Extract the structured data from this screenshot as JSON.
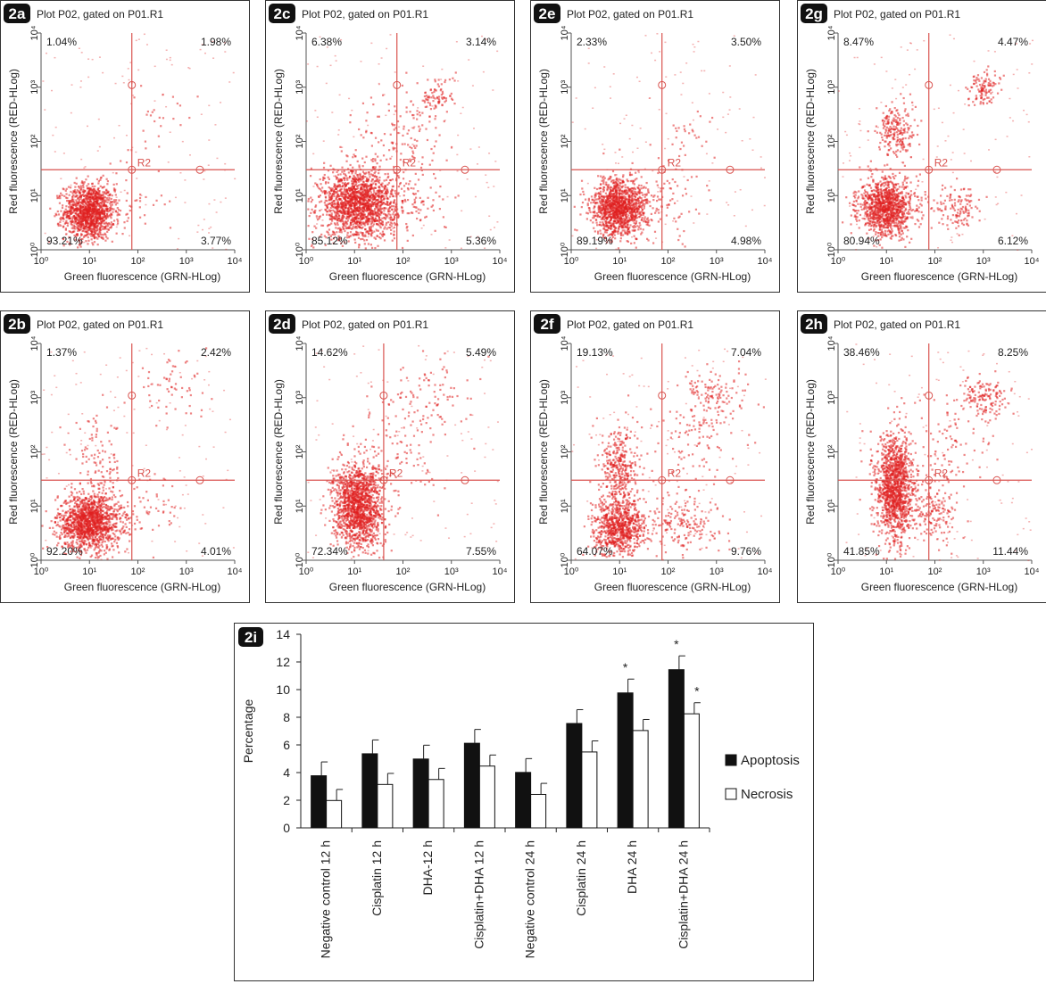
{
  "colors": {
    "dot": "#e02020",
    "gate": "#d9534f",
    "bar_apoptosis": "#111111",
    "bar_necrosis": "#ffffff"
  },
  "chart_data": [
    {
      "type": "scatter",
      "panel_label": "2a",
      "title": "Plot P02, gated on P01.R1",
      "xlabel": "Green fluorescence (GRN-HLog)",
      "ylabel": "Red fluorescence (RED-HLog)",
      "x_scale": "log",
      "y_scale": "log",
      "xlim": [
        1,
        10000
      ],
      "ylim": [
        1,
        10000
      ],
      "x_ticks": [
        "10⁰",
        "10¹",
        "10²",
        "10³",
        "10⁴"
      ],
      "y_ticks": [
        "10⁰",
        "10¹",
        "10²",
        "10³",
        "10⁴"
      ],
      "gate_label": "R2",
      "gate_x": 75,
      "gate_y": 30,
      "quadrants": {
        "upper_left": "1.04%",
        "upper_right": "1.98%",
        "lower_left": "93.21%",
        "lower_right": "3.77%"
      },
      "clusters": [
        {
          "x": 10,
          "y": 5,
          "sx": 0.2,
          "sy": 0.2,
          "n": 1300
        },
        {
          "x": 300,
          "y": 300,
          "sx": 0.3,
          "sy": 0.2,
          "n": 25
        },
        {
          "x": 60,
          "y": 8,
          "sx": 0.3,
          "sy": 0.3,
          "n": 40
        }
      ]
    },
    {
      "type": "scatter",
      "panel_label": "2b",
      "title": "Plot P02, gated on P01.R1",
      "xlabel": "Green fluorescence (GRN-HLog)",
      "ylabel": "Red fluorescence (RED-HLog)",
      "x_scale": "log",
      "y_scale": "log",
      "xlim": [
        1,
        10000
      ],
      "ylim": [
        1,
        10000
      ],
      "x_ticks": [
        "10⁰",
        "10¹",
        "10²",
        "10³",
        "10⁴"
      ],
      "y_ticks": [
        "10⁰",
        "10¹",
        "10²",
        "10³",
        "10⁴"
      ],
      "gate_label": "R2",
      "gate_x": 75,
      "gate_y": 30,
      "quadrants": {
        "upper_left": "1.37%",
        "upper_right": "2.42%",
        "lower_left": "92.20%",
        "lower_right": "4.01%"
      },
      "clusters": [
        {
          "x": 10,
          "y": 5,
          "sx": 0.25,
          "sy": 0.2,
          "n": 1400
        },
        {
          "x": 500,
          "y": 1500,
          "sx": 0.3,
          "sy": 0.2,
          "n": 60
        },
        {
          "x": 15,
          "y": 50,
          "sx": 0.2,
          "sy": 0.35,
          "n": 120
        },
        {
          "x": 150,
          "y": 8,
          "sx": 0.3,
          "sy": 0.25,
          "n": 60
        }
      ]
    },
    {
      "type": "scatter",
      "panel_label": "2c",
      "title": "Plot P02, gated on P01.R1",
      "xlabel": "Green fluorescence (GRN-HLog)",
      "ylabel": "Red fluorescence (RED-HLog)",
      "x_scale": "log",
      "y_scale": "log",
      "xlim": [
        1,
        10000
      ],
      "ylim": [
        1,
        10000
      ],
      "x_ticks": [
        "10⁰",
        "10¹",
        "10²",
        "10³",
        "10⁴"
      ],
      "y_ticks": [
        "10⁰",
        "10¹",
        "10²",
        "10³",
        "10⁴"
      ],
      "gate_label": "R2",
      "gate_x": 75,
      "gate_y": 30,
      "quadrants": {
        "upper_left": "6.38%",
        "upper_right": "3.14%",
        "lower_left": "85.12%",
        "lower_right": "5.36%"
      },
      "clusters": [
        {
          "x": 12,
          "y": 7,
          "sx": 0.3,
          "sy": 0.25,
          "n": 1700
        },
        {
          "x": 500,
          "y": 700,
          "sx": 0.15,
          "sy": 0.15,
          "n": 90
        },
        {
          "x": 100,
          "y": 100,
          "sx": 0.35,
          "sy": 0.35,
          "n": 120
        },
        {
          "x": 150,
          "y": 8,
          "sx": 0.3,
          "sy": 0.25,
          "n": 100
        }
      ]
    },
    {
      "type": "scatter",
      "panel_label": "2d",
      "title": "Plot P02, gated on P01.R1",
      "xlabel": "Green fluorescence (GRN-HLog)",
      "ylabel": "Red fluorescence (RED-HLog)",
      "x_scale": "log",
      "y_scale": "log",
      "xlim": [
        1,
        10000
      ],
      "ylim": [
        1,
        10000
      ],
      "x_ticks": [
        "10⁰",
        "10¹",
        "10²",
        "10³",
        "10⁴"
      ],
      "y_ticks": [
        "10⁰",
        "10¹",
        "10²",
        "10³",
        "10⁴"
      ],
      "gate_label": "R2",
      "gate_x": 40,
      "gate_y": 30,
      "quadrants": {
        "upper_left": "14.62%",
        "upper_right": "5.49%",
        "lower_left": "72.34%",
        "lower_right": "7.55%"
      },
      "clusters": [
        {
          "x": 12,
          "y": 10,
          "sx": 0.2,
          "sy": 0.3,
          "n": 1500
        },
        {
          "x": 300,
          "y": 1000,
          "sx": 0.35,
          "sy": 0.3,
          "n": 90
        },
        {
          "x": 100,
          "y": 100,
          "sx": 0.35,
          "sy": 0.4,
          "n": 90
        }
      ]
    },
    {
      "type": "scatter",
      "panel_label": "2e",
      "title": "Plot P02, gated on P01.R1",
      "xlabel": "Green fluorescence (GRN-HLog)",
      "ylabel": "Red fluorescence (RED-HLog)",
      "x_scale": "log",
      "y_scale": "log",
      "xlim": [
        1,
        10000
      ],
      "ylim": [
        1,
        10000
      ],
      "x_ticks": [
        "10⁰",
        "10¹",
        "10²",
        "10³",
        "10⁴"
      ],
      "y_ticks": [
        "10⁰",
        "10¹",
        "10²",
        "10³",
        "10⁴"
      ],
      "gate_label": "R2",
      "gate_x": 75,
      "gate_y": 30,
      "quadrants": {
        "upper_left": "2.33%",
        "upper_right": "3.50%",
        "lower_left": "89.19%",
        "lower_right": "4.98%"
      },
      "clusters": [
        {
          "x": 10,
          "y": 6,
          "sx": 0.22,
          "sy": 0.2,
          "n": 1300
        },
        {
          "x": 300,
          "y": 100,
          "sx": 0.25,
          "sy": 0.2,
          "n": 30
        },
        {
          "x": 100,
          "y": 8,
          "sx": 0.3,
          "sy": 0.3,
          "n": 70
        }
      ]
    },
    {
      "type": "scatter",
      "panel_label": "2f",
      "title": "Plot P02, gated on P01.R1",
      "xlabel": "Green fluorescence (GRN-HLog)",
      "ylabel": "Red fluorescence (RED-HLog)",
      "x_scale": "log",
      "y_scale": "log",
      "xlim": [
        1,
        10000
      ],
      "ylim": [
        1,
        10000
      ],
      "x_ticks": [
        "10⁰",
        "10¹",
        "10²",
        "10³",
        "10⁴"
      ],
      "y_ticks": [
        "10⁰",
        "10¹",
        "10²",
        "10³",
        "10⁴"
      ],
      "gate_label": "R2",
      "gate_x": 75,
      "gate_y": 30,
      "quadrants": {
        "upper_left": "19.13%",
        "upper_right": "7.04%",
        "lower_left": "64.07%",
        "lower_right": "9.76%"
      },
      "clusters": [
        {
          "x": 10,
          "y": 4,
          "sx": 0.2,
          "sy": 0.2,
          "n": 800
        },
        {
          "x": 10,
          "y": 50,
          "sx": 0.15,
          "sy": 0.3,
          "n": 350
        },
        {
          "x": 1000,
          "y": 1000,
          "sx": 0.25,
          "sy": 0.2,
          "n": 120
        },
        {
          "x": 200,
          "y": 5,
          "sx": 0.3,
          "sy": 0.2,
          "n": 180
        },
        {
          "x": 400,
          "y": 200,
          "sx": 0.35,
          "sy": 0.4,
          "n": 100
        }
      ]
    },
    {
      "type": "scatter",
      "panel_label": "2g",
      "title": "Plot P02, gated on P01.R1",
      "xlabel": "Green fluorescence (GRN-HLog)",
      "ylabel": "Red fluorescence (RED-HLog)",
      "x_scale": "log",
      "y_scale": "log",
      "xlim": [
        1,
        10000
      ],
      "ylim": [
        1,
        10000
      ],
      "x_ticks": [
        "10⁰",
        "10¹",
        "10²",
        "10³",
        "10⁴"
      ],
      "y_ticks": [
        "10⁰",
        "10¹",
        "10²",
        "10³",
        "10⁴"
      ],
      "gate_label": "R2",
      "gate_x": 75,
      "gate_y": 30,
      "quadrants": {
        "upper_left": "8.47%",
        "upper_right": "4.47%",
        "lower_left": "80.94%",
        "lower_right": "6.12%"
      },
      "clusters": [
        {
          "x": 10,
          "y": 6,
          "sx": 0.22,
          "sy": 0.2,
          "n": 1100
        },
        {
          "x": 15,
          "y": 150,
          "sx": 0.15,
          "sy": 0.2,
          "n": 220
        },
        {
          "x": 1000,
          "y": 1000,
          "sx": 0.12,
          "sy": 0.12,
          "n": 110
        },
        {
          "x": 300,
          "y": 6,
          "sx": 0.2,
          "sy": 0.15,
          "n": 130
        }
      ]
    },
    {
      "type": "scatter",
      "panel_label": "2h",
      "title": "Plot P02, gated on P01.R1",
      "xlabel": "Green fluorescence (GRN-HLog)",
      "ylabel": "Red fluorescence (RED-HLog)",
      "x_scale": "log",
      "y_scale": "log",
      "xlim": [
        1,
        10000
      ],
      "ylim": [
        1,
        10000
      ],
      "x_ticks": [
        "10⁰",
        "10¹",
        "10²",
        "10³",
        "10⁴"
      ],
      "y_ticks": [
        "10⁰",
        "10¹",
        "10²",
        "10³",
        "10⁴"
      ],
      "gate_label": "R2",
      "gate_x": 75,
      "gate_y": 30,
      "quadrants": {
        "upper_left": "38.46%",
        "upper_right": "8.25%",
        "lower_left": "41.85%",
        "lower_right": "11.44%"
      },
      "clusters": [
        {
          "x": 15,
          "y": 20,
          "sx": 0.15,
          "sy": 0.4,
          "n": 1300
        },
        {
          "x": 1000,
          "y": 1000,
          "sx": 0.2,
          "sy": 0.15,
          "n": 150
        },
        {
          "x": 200,
          "y": 100,
          "sx": 0.35,
          "sy": 0.4,
          "n": 100
        },
        {
          "x": 100,
          "y": 8,
          "sx": 0.2,
          "sy": 0.2,
          "n": 150
        }
      ]
    },
    {
      "type": "bar",
      "panel_label": "2i",
      "title": "",
      "xlabel": "",
      "ylabel": "Percentage",
      "ylim": [
        0,
        14
      ],
      "y_ticks": [
        0,
        2,
        4,
        6,
        8,
        10,
        12,
        14
      ],
      "categories": [
        "Negative control 12 h",
        "Cisplatin 12 h",
        "DHA-12 h",
        "Cisplatin+DHA 12 h",
        "Negative control 24 h",
        "Cisplatin 24 h",
        "DHA 24 h",
        "Cisplatin+DHA 24 h"
      ],
      "series": [
        {
          "name": "Apoptosis",
          "values": [
            3.77,
            5.36,
            4.98,
            6.12,
            4.01,
            7.55,
            9.76,
            11.44
          ],
          "errors": [
            1.0,
            1.0,
            1.0,
            1.0,
            1.0,
            1.0,
            1.0,
            1.0
          ],
          "significant": [
            false,
            false,
            false,
            false,
            false,
            false,
            true,
            true
          ]
        },
        {
          "name": "Necrosis",
          "values": [
            1.98,
            3.14,
            3.5,
            4.47,
            2.42,
            5.49,
            7.04,
            8.25
          ],
          "errors": [
            0.8,
            0.8,
            0.8,
            0.8,
            0.8,
            0.8,
            0.8,
            0.8
          ],
          "significant": [
            false,
            false,
            false,
            false,
            false,
            false,
            false,
            true
          ]
        }
      ],
      "significance_mark": "*",
      "legend": "right"
    }
  ]
}
